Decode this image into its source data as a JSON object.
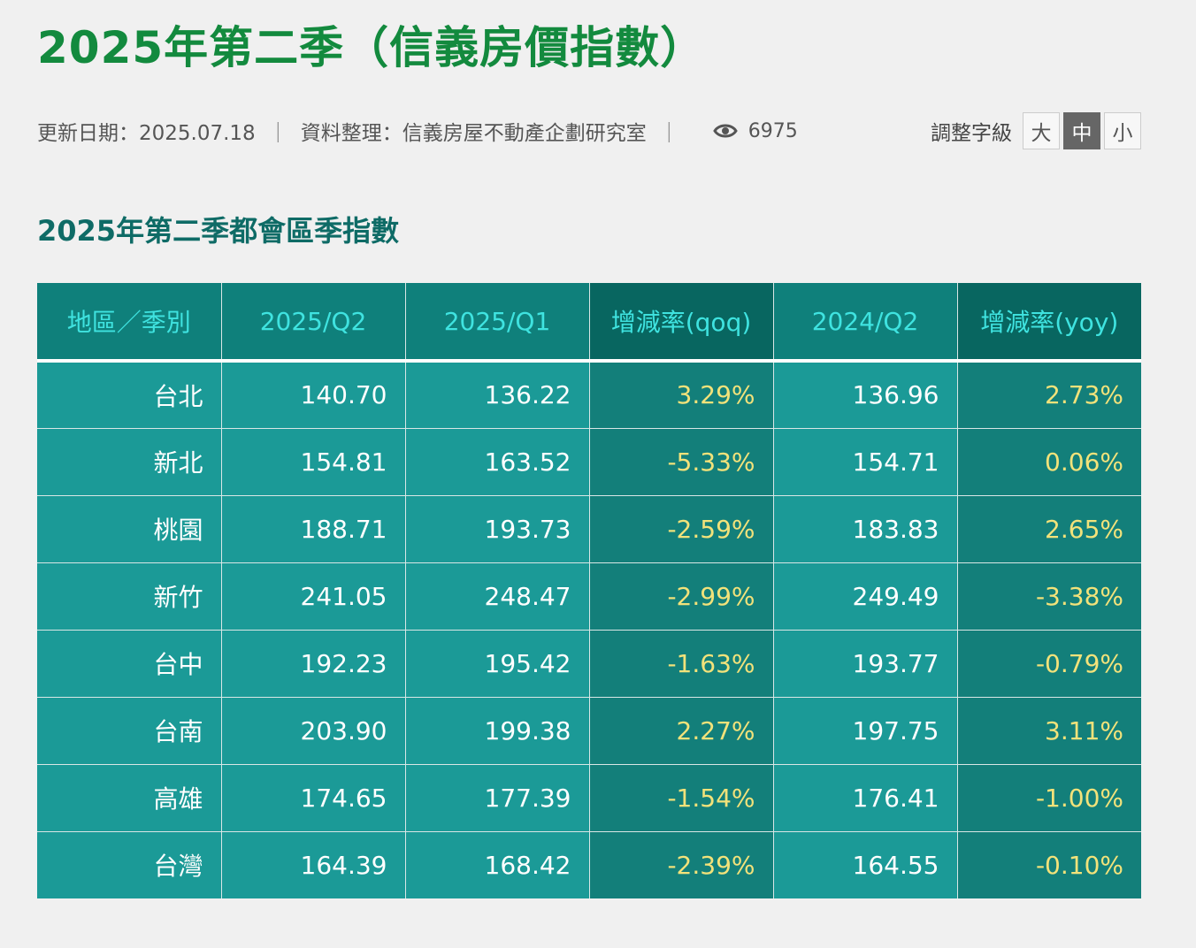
{
  "page": {
    "title": "2025年第二季（信義房價指數）"
  },
  "meta": {
    "update_label": "更新日期：2025.07.18",
    "separator": "｜",
    "source_label": "資料整理：信義房屋不動產企劃研究室",
    "views_icon": "eye-icon",
    "views": "6975",
    "font_size_label": "調整字級",
    "font_sizes": [
      "大",
      "中",
      "小"
    ],
    "font_size_selected": "中"
  },
  "section": {
    "title": "2025年第二季都會區季指數"
  },
  "table": {
    "headers": [
      "地區／季別",
      "2025/Q2",
      "2025/Q1",
      "增減率(qoq)",
      "2024/Q2",
      "增減率(yoy)"
    ],
    "rows": [
      [
        "台北",
        "140.70",
        "136.22",
        "3.29%",
        "136.96",
        "2.73%"
      ],
      [
        "新北",
        "154.81",
        "163.52",
        "-5.33%",
        "154.71",
        "0.06%"
      ],
      [
        "桃園",
        "188.71",
        "193.73",
        "-2.59%",
        "183.83",
        "2.65%"
      ],
      [
        "新竹",
        "241.05",
        "248.47",
        "-2.99%",
        "249.49",
        "-3.38%"
      ],
      [
        "台中",
        "192.23",
        "195.42",
        "-1.63%",
        "193.77",
        "-0.79%"
      ],
      [
        "台南",
        "203.90",
        "199.38",
        "2.27%",
        "197.75",
        "3.11%"
      ],
      [
        "高雄",
        "174.65",
        "177.39",
        "-1.54%",
        "176.41",
        "-1.00%"
      ],
      [
        "台灣",
        "164.39",
        "168.42",
        "-2.39%",
        "164.55",
        "-0.10%"
      ]
    ]
  },
  "colors": {
    "title_green": "#138a3e",
    "section_teal": "#0e6b66",
    "header_bg": "#0f807b",
    "header_dark_bg": "#086660",
    "header_text": "#3fe3e0",
    "cell_bg": "#1b9a97",
    "cell_dark_bg": "#137f7a",
    "rate_text": "#f2e27a"
  }
}
